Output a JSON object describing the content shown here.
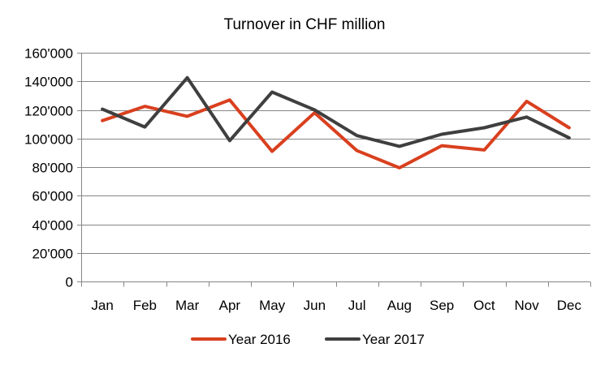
{
  "chart_data": {
    "type": "line",
    "title": "Turnover in CHF million",
    "xlabel": "",
    "ylabel": "",
    "categories": [
      "Jan",
      "Feb",
      "Mar",
      "Apr",
      "May",
      "Jun",
      "Jul",
      "Aug",
      "Sep",
      "Oct",
      "Nov",
      "Dec"
    ],
    "series": [
      {
        "name": "Year 2016",
        "color": "#D9401F",
        "values": [
          112500,
          122500,
          115500,
          127000,
          91000,
          118000,
          91500,
          79500,
          95000,
          92000,
          126000,
          107500
        ]
      },
      {
        "name": "Year 2017",
        "color": "#3F3F3F",
        "values": [
          120500,
          108000,
          142500,
          98500,
          132500,
          120000,
          102000,
          94500,
          103000,
          107500,
          115000,
          100500
        ]
      }
    ],
    "ylim": [
      0,
      160000
    ],
    "yticks": [
      0,
      20000,
      40000,
      60000,
      80000,
      100000,
      120000,
      140000,
      160000
    ],
    "ytick_labels": [
      "0",
      "20'000",
      "40'000",
      "60'000",
      "80'000",
      "100'000",
      "120'000",
      "140'000",
      "160'000"
    ],
    "grid": true,
    "legend_position": "bottom-center",
    "colors": {
      "grid": "#868686",
      "axis": "#868686"
    }
  }
}
